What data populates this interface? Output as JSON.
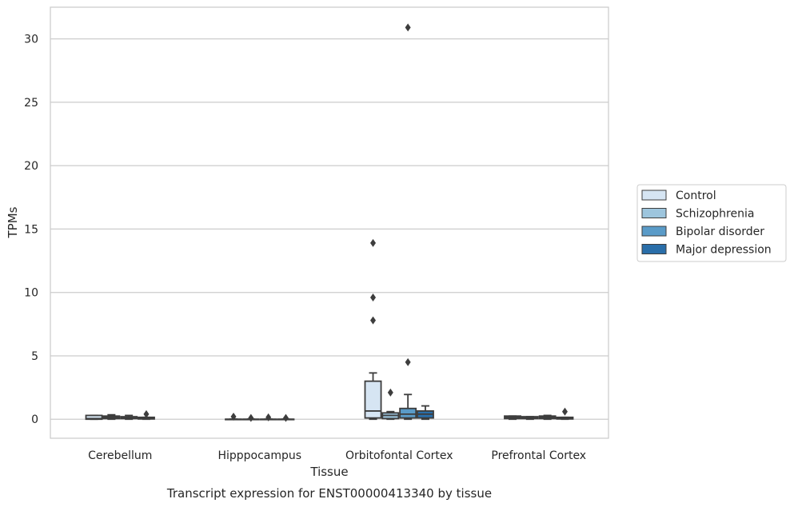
{
  "chart_data": {
    "type": "boxplot",
    "title": "Transcript expression for ENST00000413340 by tissue",
    "xlabel": "Tissue",
    "ylabel": "TPMs",
    "ylim": [
      -1.5,
      32.5
    ],
    "yticks": [
      0,
      5,
      10,
      15,
      20,
      25,
      30
    ],
    "grid": "horizontal",
    "legend_position": "right",
    "categories": [
      "Cerebellum",
      "Hipppocampus",
      "Orbitofontal Cortex",
      "Prefrontal Cortex"
    ],
    "series": [
      {
        "name": "Control",
        "color": "#d6e5f3",
        "boxes": [
          {
            "whislo": 0.0,
            "q1": 0.0,
            "med": 0.05,
            "q3": 0.3,
            "whishi": 0.3,
            "fliers": []
          },
          {
            "whislo": 0.0,
            "q1": 0.0,
            "med": 0.0,
            "q3": 0.0,
            "whishi": 0.0,
            "fliers": [
              0.2
            ]
          },
          {
            "whislo": 0.0,
            "q1": 0.1,
            "med": 0.65,
            "q3": 3.0,
            "whishi": 3.65,
            "fliers": [
              7.8,
              9.6,
              13.9
            ]
          },
          {
            "whislo": 0.0,
            "q1": 0.05,
            "med": 0.15,
            "q3": 0.25,
            "whishi": 0.25,
            "fliers": []
          }
        ]
      },
      {
        "name": "Schizophrenia",
        "color": "#9dc5dd",
        "boxes": [
          {
            "whislo": 0.0,
            "q1": 0.05,
            "med": 0.15,
            "q3": 0.25,
            "whishi": 0.35,
            "fliers": []
          },
          {
            "whislo": 0.0,
            "q1": 0.0,
            "med": 0.0,
            "q3": 0.0,
            "whishi": 0.0,
            "fliers": [
              0.1
            ]
          },
          {
            "whislo": 0.0,
            "q1": 0.05,
            "med": 0.3,
            "q3": 0.5,
            "whishi": 0.6,
            "fliers": [
              2.1
            ]
          },
          {
            "whislo": 0.0,
            "q1": 0.05,
            "med": 0.1,
            "q3": 0.2,
            "whishi": 0.2,
            "fliers": []
          }
        ]
      },
      {
        "name": "Bipolar disorder",
        "color": "#5a9bc8",
        "boxes": [
          {
            "whislo": 0.0,
            "q1": 0.05,
            "med": 0.1,
            "q3": 0.2,
            "whishi": 0.3,
            "fliers": []
          },
          {
            "whislo": 0.0,
            "q1": 0.0,
            "med": 0.0,
            "q3": 0.0,
            "whishi": 0.0,
            "fliers": [
              0.15
            ]
          },
          {
            "whislo": 0.0,
            "q1": 0.1,
            "med": 0.4,
            "q3": 0.85,
            "whishi": 1.95,
            "fliers": [
              4.5,
              30.9
            ]
          },
          {
            "whislo": 0.0,
            "q1": 0.05,
            "med": 0.15,
            "q3": 0.25,
            "whishi": 0.3,
            "fliers": []
          }
        ]
      },
      {
        "name": "Major depression",
        "color": "#2a6ea9",
        "boxes": [
          {
            "whislo": 0.0,
            "q1": 0.02,
            "med": 0.1,
            "q3": 0.15,
            "whishi": 0.15,
            "fliers": [
              0.4
            ]
          },
          {
            "whislo": 0.0,
            "q1": 0.0,
            "med": 0.0,
            "q3": 0.0,
            "whishi": 0.0,
            "fliers": [
              0.1
            ]
          },
          {
            "whislo": 0.0,
            "q1": 0.1,
            "med": 0.4,
            "q3": 0.65,
            "whishi": 1.05,
            "fliers": []
          },
          {
            "whislo": 0.0,
            "q1": 0.02,
            "med": 0.1,
            "q3": 0.15,
            "whishi": 0.15,
            "fliers": [
              0.6
            ]
          }
        ]
      }
    ]
  }
}
